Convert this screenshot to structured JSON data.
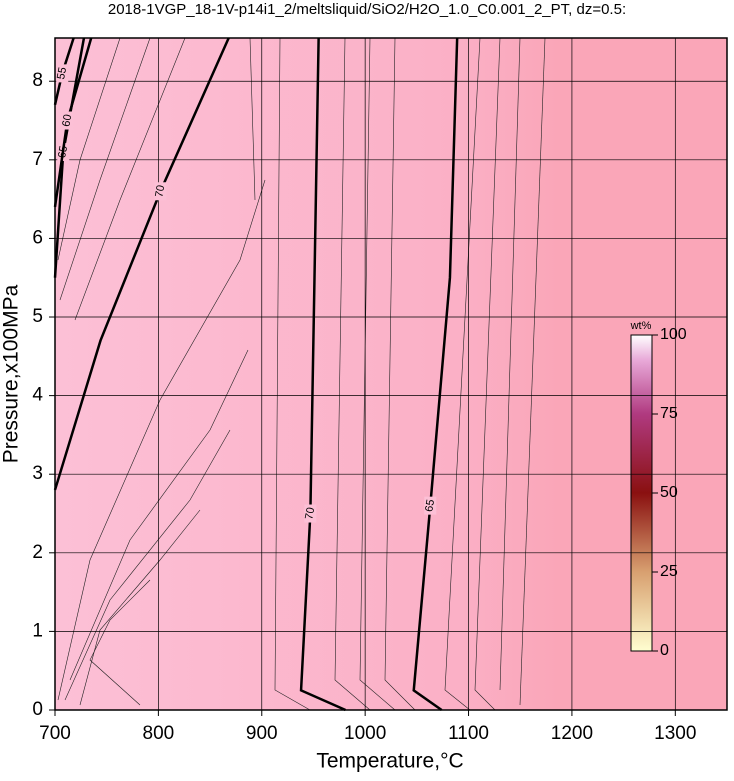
{
  "chart_data": {
    "type": "contour",
    "title": "2018-1VGP_18-1V-p14i1_2/meltsliquid/SiO2/H2O_1.0_C0.001_2_PT, dz=0.5:",
    "x_label": "Temperature,°C",
    "y_label": "Pressure,x100MPa",
    "xlim": [
      700,
      1350
    ],
    "ylim": [
      0,
      8.55
    ],
    "xticks": [
      700,
      800,
      900,
      1000,
      1100,
      1200,
      1300
    ],
    "yticks": [
      0,
      1,
      2,
      3,
      4,
      5,
      6,
      7,
      8
    ],
    "grid": true,
    "contours": [
      {
        "level": 70,
        "x": [
          700,
          744,
          802,
          868
        ],
        "y": [
          2.8,
          4.7,
          6.6,
          8.55
        ]
      },
      {
        "level": 70,
        "x": [
          955,
          951,
          947,
          938,
          981
        ],
        "y": [
          8.55,
          5.5,
          2.5,
          0.25,
          0
        ]
      },
      {
        "level": 65,
        "x": [
          1089,
          1082,
          1063,
          1047,
          1074
        ],
        "y": [
          8.55,
          5.5,
          2.6,
          0.25,
          0
        ]
      },
      {
        "level": 65,
        "x": [
          700,
          708,
          728
        ],
        "y": [
          5.5,
          7.1,
          8.55
        ]
      },
      {
        "level": 60,
        "x": [
          700,
          712,
          735
        ],
        "y": [
          6.4,
          7.5,
          8.55
        ]
      },
      {
        "level": 55,
        "x": [
          700,
          707,
          718
        ],
        "y": [
          7.7,
          8.1,
          8.55
        ]
      }
    ],
    "colorbar": {
      "label": "wt%",
      "lim": [
        0,
        100
      ],
      "ticks": [
        0,
        25,
        50,
        75,
        100
      ]
    }
  }
}
